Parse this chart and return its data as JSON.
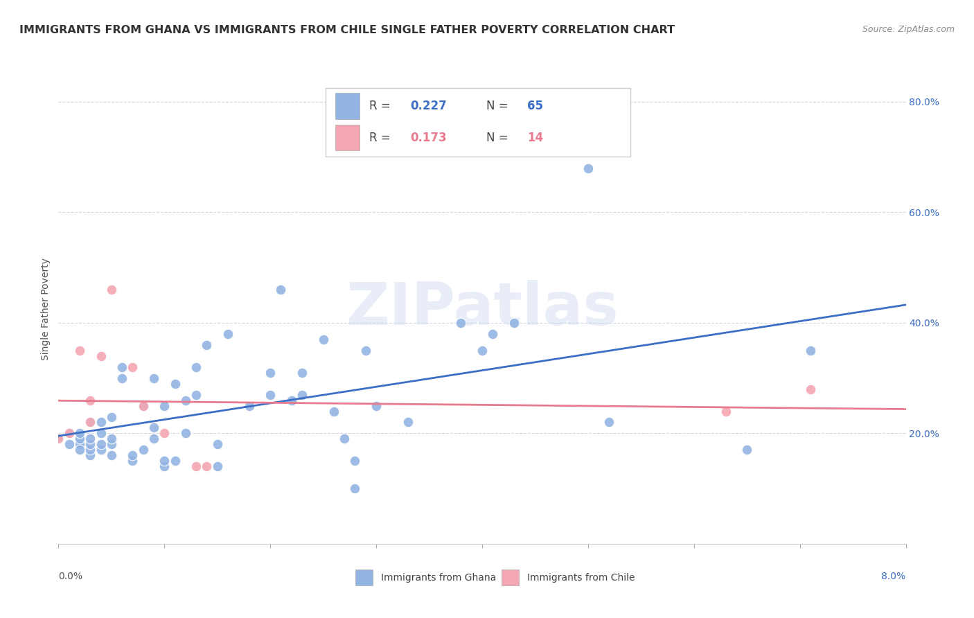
{
  "title": "IMMIGRANTS FROM GHANA VS IMMIGRANTS FROM CHILE SINGLE FATHER POVERTY CORRELATION CHART",
  "source": "Source: ZipAtlas.com",
  "ylabel": "Single Father Poverty",
  "legend_ghana": "Immigrants from Ghana",
  "legend_chile": "Immigrants from Chile",
  "r_ghana": 0.227,
  "n_ghana": 65,
  "r_chile": 0.173,
  "n_chile": 14,
  "ghana_color": "#92b4e3",
  "chile_color": "#f4a7b2",
  "ghana_line_color": "#3b6ec4",
  "chile_line_color": "#e87a8f",
  "xlim": [
    0.0,
    0.08
  ],
  "ylim": [
    0.0,
    0.85
  ],
  "yticks": [
    0.2,
    0.4,
    0.6,
    0.8
  ],
  "ytick_labels": [
    "20.0%",
    "40.0%",
    "60.0%",
    "80.0%"
  ],
  "ghana_x": [
    0.0,
    0.001,
    0.001,
    0.002,
    0.002,
    0.002,
    0.002,
    0.003,
    0.003,
    0.003,
    0.003,
    0.003,
    0.004,
    0.004,
    0.004,
    0.004,
    0.005,
    0.005,
    0.005,
    0.005,
    0.006,
    0.006,
    0.007,
    0.007,
    0.008,
    0.008,
    0.009,
    0.009,
    0.009,
    0.01,
    0.01,
    0.01,
    0.011,
    0.011,
    0.012,
    0.012,
    0.013,
    0.013,
    0.014,
    0.015,
    0.015,
    0.016,
    0.018,
    0.02,
    0.02,
    0.021,
    0.022,
    0.023,
    0.023,
    0.025,
    0.026,
    0.027,
    0.028,
    0.028,
    0.029,
    0.03,
    0.033,
    0.038,
    0.04,
    0.041,
    0.043,
    0.05,
    0.052,
    0.065,
    0.071
  ],
  "ghana_y": [
    0.19,
    0.18,
    0.2,
    0.18,
    0.17,
    0.19,
    0.2,
    0.16,
    0.17,
    0.18,
    0.19,
    0.22,
    0.17,
    0.18,
    0.2,
    0.22,
    0.16,
    0.18,
    0.19,
    0.23,
    0.3,
    0.32,
    0.15,
    0.16,
    0.17,
    0.25,
    0.19,
    0.21,
    0.3,
    0.14,
    0.15,
    0.25,
    0.15,
    0.29,
    0.2,
    0.26,
    0.27,
    0.32,
    0.36,
    0.14,
    0.18,
    0.38,
    0.25,
    0.27,
    0.31,
    0.46,
    0.26,
    0.27,
    0.31,
    0.37,
    0.24,
    0.19,
    0.1,
    0.15,
    0.35,
    0.25,
    0.22,
    0.4,
    0.35,
    0.38,
    0.4,
    0.68,
    0.22,
    0.17,
    0.35
  ],
  "chile_x": [
    0.0,
    0.001,
    0.002,
    0.003,
    0.003,
    0.004,
    0.005,
    0.007,
    0.008,
    0.01,
    0.013,
    0.014,
    0.063,
    0.071
  ],
  "chile_y": [
    0.19,
    0.2,
    0.35,
    0.22,
    0.26,
    0.34,
    0.46,
    0.32,
    0.25,
    0.2,
    0.14,
    0.14,
    0.24,
    0.28
  ],
  "background_color": "#ffffff",
  "grid_color": "#d0d8e8",
  "watermark": "ZIPatlas",
  "title_fontsize": 11.5,
  "axis_label_fontsize": 10,
  "tick_fontsize": 10
}
